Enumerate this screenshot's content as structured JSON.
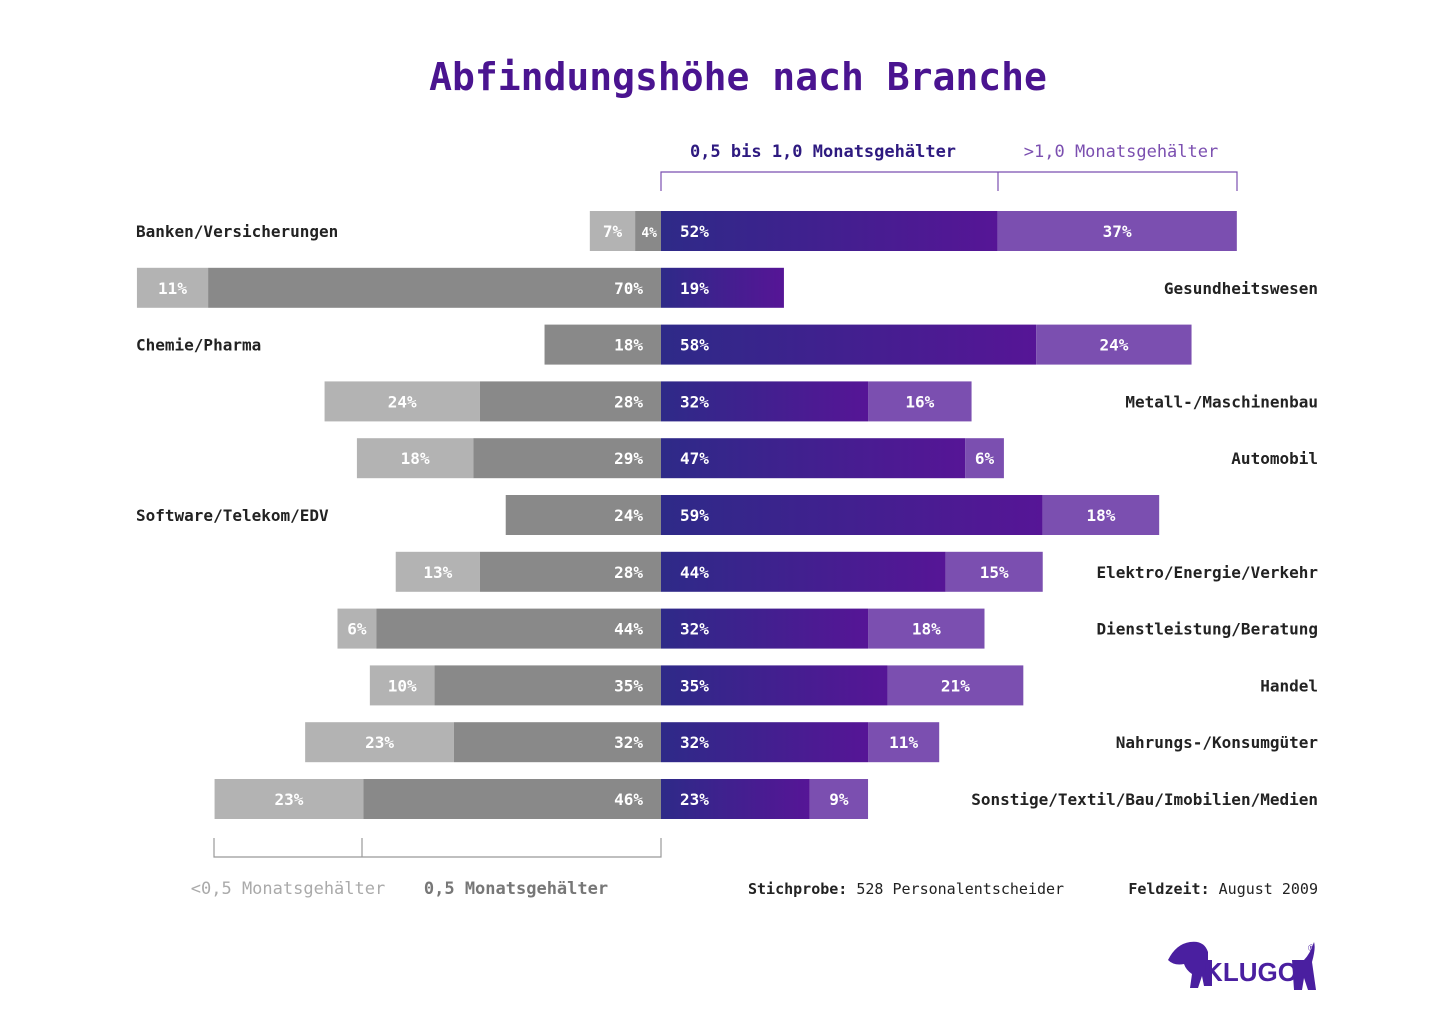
{
  "chart_data": {
    "type": "bar",
    "orientation": "horizontal-diverging-stacked",
    "title": "Abfindungshöhe nach Branche",
    "unit": "%",
    "categories": [
      "Banken/Versicherungen",
      "Gesundheitswesen",
      "Chemie/Pharma",
      "Metall-/Maschinenbau",
      "Automobil",
      "Software/Telekom/EDV",
      "Elektro/Energie/Verkehr",
      "Dienstleistung/Beratung",
      "Handel",
      "Nahrungs-/Konsumgüter",
      "Sonstige/Textil/Bau/Imobilien/Medien"
    ],
    "label_side": [
      "left",
      "right",
      "left",
      "right",
      "right",
      "left",
      "right",
      "right",
      "right",
      "right",
      "right"
    ],
    "series": [
      {
        "name": "<0,5 Monatsgehälter",
        "side": "left",
        "color": "#b3b3b3",
        "values": [
          7,
          11,
          0,
          24,
          18,
          0,
          13,
          6,
          10,
          23,
          23
        ]
      },
      {
        "name": "0,5 Monatsgehälter",
        "side": "left",
        "color": "#898989",
        "values": [
          4,
          70,
          18,
          28,
          29,
          24,
          28,
          44,
          35,
          32,
          46
        ]
      },
      {
        "name": "0,5 bis 1,0 Monatsgehälter",
        "side": "right",
        "color": "#4a168f",
        "values": [
          52,
          19,
          58,
          32,
          47,
          59,
          44,
          32,
          35,
          32,
          23
        ]
      },
      {
        "name": ">1,0 Monatsgehälter",
        "side": "right",
        "color": "#7b4fb0",
        "values": [
          37,
          0,
          24,
          16,
          6,
          18,
          15,
          18,
          21,
          11,
          9
        ]
      }
    ]
  },
  "footer": {
    "sample_label": "Stichprobe:",
    "sample_value": "528 Personalentscheider",
    "field_label": "Feldzeit:",
    "field_value": "August 2009"
  },
  "logo": {
    "text": "KLUGO",
    "mark": "®",
    "color": "#4a1fa0"
  },
  "colors": {
    "title": "#4a1490",
    "gradient_start": "#2e2a88",
    "gradient_end": "#561596"
  }
}
